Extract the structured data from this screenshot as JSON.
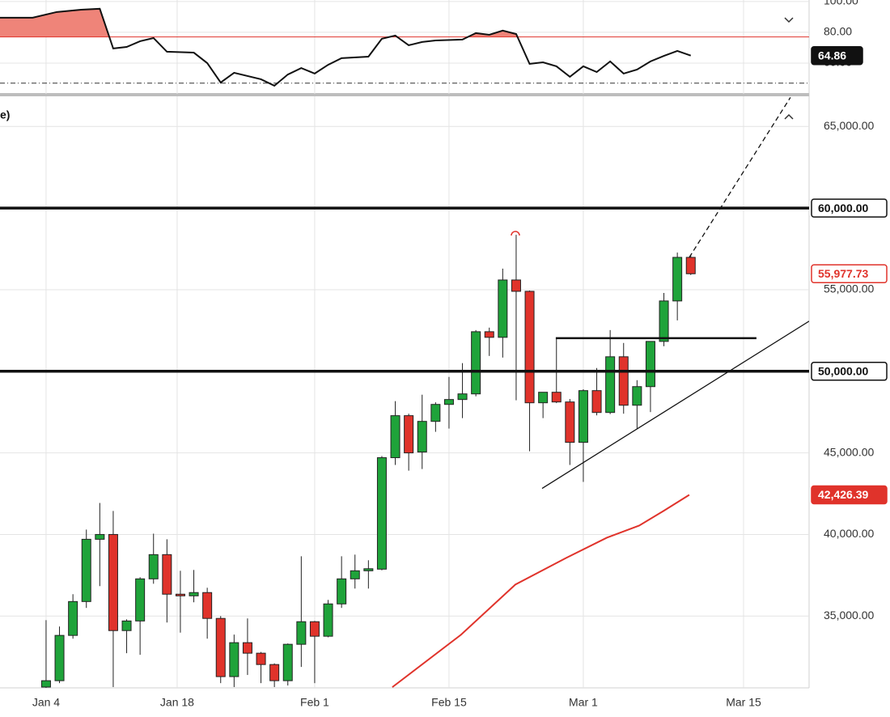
{
  "chart_data": [
    {
      "type": "line",
      "x": [
        -3.43,
        -1,
        0.8,
        2.6,
        4,
        5,
        6,
        7,
        8,
        9,
        11,
        12,
        13,
        14,
        16,
        17,
        18,
        19,
        20,
        21,
        22,
        24,
        25,
        26,
        27,
        28,
        29,
        31,
        32,
        33,
        34,
        35,
        36,
        37,
        38,
        39,
        40,
        41,
        42,
        43,
        44,
        45,
        46,
        47,
        48
      ],
      "values": [
        89.5,
        89.5,
        93.2,
        94.7,
        95.3,
        69.5,
        70.5,
        74.2,
        76.3,
        67.4,
        66.8,
        60,
        47.4,
        53.7,
        49.5,
        45.3,
        52.6,
        56.8,
        53.2,
        58.9,
        63.2,
        64.2,
        75.8,
        77.9,
        71.6,
        73.7,
        74.7,
        75.3,
        79.5,
        78.4,
        81.1,
        78.9,
        59.5,
        60.5,
        57.9,
        51.1,
        57.9,
        54.2,
        61.1,
        53.2,
        55.8,
        61.1,
        64.7,
        67.9,
        64.86
      ],
      "color": "#111111",
      "fill_color": "#ef8479",
      "xlim": [
        -3.43,
        56.81
      ],
      "ylim": [
        40,
        101
      ],
      "yticks": [
        {
          "value": 100,
          "label": "100.00"
        },
        {
          "value": 80,
          "label": "80.00"
        },
        {
          "value": 60,
          "label": "60.00"
        }
      ],
      "levels": [
        {
          "value": 77,
          "color": "#e0332b",
          "style": "solid"
        },
        {
          "value": 47,
          "color": "#333333",
          "style": "dashdot"
        }
      ],
      "last_value": {
        "value": 64.86,
        "label": "64.86"
      }
    },
    {
      "type": "candlestick",
      "title_fragment": "e)",
      "x": [
        0,
        1,
        2,
        3,
        4,
        5,
        6,
        7,
        8,
        9,
        10,
        11,
        12,
        13,
        14,
        15,
        16,
        17,
        18,
        19,
        20,
        21,
        22,
        23,
        24,
        25,
        26,
        27,
        28,
        29,
        30,
        31,
        32,
        33,
        34,
        35,
        36,
        37,
        38,
        39,
        40,
        41,
        42,
        43,
        44,
        45,
        46,
        47,
        48
      ],
      "open": [
        30650,
        31040,
        33815,
        35890,
        39705,
        40000,
        34110,
        34700,
        37280,
        38765,
        36340,
        36240,
        36440,
        34855,
        31290,
        33370,
        32725,
        32030,
        31040,
        33270,
        34655,
        33765,
        35745,
        37280,
        37775,
        37875,
        44705,
        47280,
        45050,
        46930,
        47970,
        48270,
        48615,
        52425,
        52080,
        55595,
        54900,
        48070,
        48715,
        48120,
        45645,
        48815,
        47475,
        50890,
        47920,
        49060,
        51830,
        54310,
        56980
      ],
      "high": [
        34750,
        34360,
        36340,
        40300,
        41930,
        41440,
        34800,
        37380,
        40050,
        39705,
        37775,
        37825,
        36735,
        35000,
        33865,
        34855,
        32800,
        32100,
        33320,
        38665,
        34700,
        35990,
        38665,
        38765,
        38420,
        44805,
        48170,
        47400,
        48565,
        48100,
        49655,
        50500,
        52525,
        52675,
        56290,
        58365,
        54950,
        48715,
        52030,
        48300,
        48900,
        50200,
        52525,
        51735,
        49455,
        51830,
        54800,
        57275,
        57130
      ],
      "low": [
        30600,
        30890,
        33615,
        35500,
        36835,
        30650,
        32725,
        32625,
        36980,
        34605,
        33985,
        35845,
        33615,
        30890,
        30650,
        31390,
        30890,
        30650,
        30745,
        31885,
        30890,
        33700,
        35500,
        36685,
        36685,
        37800,
        44260,
        43910,
        44010,
        46290,
        46490,
        47130,
        48465,
        50940,
        50840,
        48220,
        45100,
        47130,
        48050,
        44260,
        43220,
        47300,
        47375,
        47400,
        46490,
        47500,
        51535,
        53120,
        55900
      ],
      "close": [
        31040,
        33815,
        35890,
        39705,
        40000,
        34110,
        34700,
        37280,
        38765,
        36340,
        36240,
        36440,
        34855,
        31290,
        33370,
        32725,
        32030,
        31040,
        33270,
        34655,
        33765,
        35745,
        37280,
        37775,
        37900,
        44705,
        47280,
        45000,
        46930,
        47970,
        48270,
        48615,
        52425,
        52080,
        55595,
        54900,
        48070,
        48715,
        48120,
        45645,
        48815,
        47475,
        50890,
        47920,
        49060,
        51830,
        54310,
        56980,
        55977.73
      ],
      "up_color": "#1fa33a",
      "down_color": "#e0332b",
      "xlim": [
        -3.43,
        56.81
      ],
      "ylim": [
        30600,
        66850
      ],
      "xticks": [
        {
          "value": 0,
          "label": "Jan 4"
        },
        {
          "value": 9.76,
          "label": "Jan 18"
        },
        {
          "value": 20,
          "label": "Feb 1"
        },
        {
          "value": 30,
          "label": "Feb 15"
        },
        {
          "value": 40,
          "label": "Mar 1"
        },
        {
          "value": 51.93,
          "label": "Mar 15"
        }
      ],
      "yticks": [
        {
          "value": 65000,
          "label": "65,000.00"
        },
        {
          "value": 55000,
          "label": "55,000.00"
        },
        {
          "value": 45000,
          "label": "45,000.00"
        },
        {
          "value": 40000,
          "label": "40,000.00"
        },
        {
          "value": 35000,
          "label": "35,000.00"
        }
      ],
      "grid": true,
      "moving_average": {
        "x": [
          25.78,
          30.9,
          34.94,
          38.73,
          41.75,
          44.16,
          45.96,
          47.89
        ],
        "values": [
          30644,
          33861,
          36931,
          38564,
          39802,
          40545,
          41436,
          42426.39
        ],
        "value_labels": [
          null,
          null,
          null,
          null,
          null,
          null,
          null,
          "42,426.39"
        ],
        "color": "#e0332b"
      },
      "levels": [
        {
          "value": 60000,
          "label": "60,000.00"
        },
        {
          "value": 50000,
          "label": "50,000.00"
        }
      ],
      "last_price": {
        "value": 55977.73,
        "label": "55,977.73",
        "color": "#e0332b"
      },
      "drawings": [
        {
          "x": [
            36.93,
            56.81
          ],
          "y": [
            42823,
            53070
          ],
          "dashed": false
        },
        {
          "x": [
            37.95,
            52.89
          ],
          "y": [
            52030,
            52030
          ],
          "dashed": false
        },
        {
          "x": [
            47.89,
            55.42
          ],
          "y": [
            56980,
            66782
          ],
          "dashed": true
        }
      ]
    }
  ]
}
